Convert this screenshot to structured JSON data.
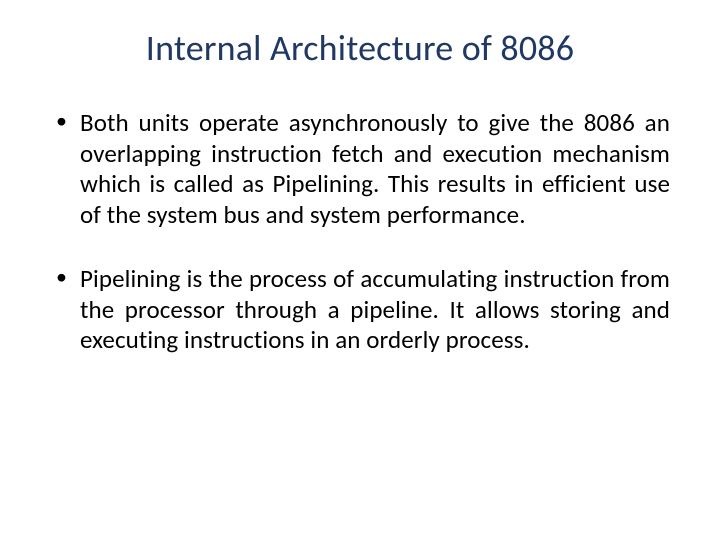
{
  "slide": {
    "title": "Internal Architecture of 8086",
    "title_color": "#1f3864",
    "title_fontsize": 36,
    "body_color": "#000000",
    "body_fontsize": 25,
    "background_color": "#ffffff",
    "bullets": [
      "Both units operate asynchronously to give the 8086 an overlapping instruction fetch and execution mechanism which is called as Pipelining. This results in efficient use of the system bus and system performance.",
      "Pipelining is the process of accumulating instruction from the processor through a pipeline. It allows storing and executing instructions in an orderly process."
    ]
  }
}
